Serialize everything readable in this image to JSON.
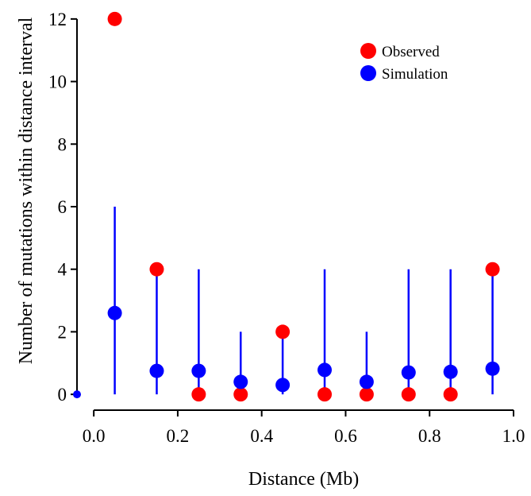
{
  "chart_data": {
    "type": "scatter",
    "title": "",
    "xlabel": "Distance (Mb)",
    "ylabel": "Number of mutations within distance interval",
    "xlim": [
      -0.04,
      1.0
    ],
    "ylim": [
      -0.2,
      12.2
    ],
    "xticks": [
      "0.0",
      "0.2",
      "0.4",
      "0.6",
      "0.8",
      "1.0"
    ],
    "xtick_values": [
      0.0,
      0.2,
      0.4,
      0.6,
      0.8,
      1.0
    ],
    "yticks": [
      "0",
      "2",
      "4",
      "6",
      "8",
      "10",
      "12"
    ],
    "ytick_values": [
      0,
      2,
      4,
      6,
      8,
      10,
      12
    ],
    "grid": false,
    "legend_position": "top-right",
    "series": [
      {
        "name": "Observed",
        "color": "#ff0000",
        "x": [
          0.05,
          0.15,
          0.25,
          0.35,
          0.45,
          0.55,
          0.65,
          0.75,
          0.85,
          0.95
        ],
        "y": [
          12,
          4,
          0,
          0,
          2,
          0,
          0,
          0,
          0,
          4
        ]
      },
      {
        "name": "Simulation",
        "color": "#0000ff",
        "x": [
          0.05,
          0.15,
          0.25,
          0.35,
          0.45,
          0.55,
          0.65,
          0.75,
          0.85,
          0.95
        ],
        "y": [
          2.6,
          0.75,
          0.75,
          0.4,
          0.3,
          0.78,
          0.4,
          0.7,
          0.72,
          0.82
        ],
        "ymin": [
          0,
          0,
          0,
          0,
          0,
          0,
          0,
          0,
          0,
          0
        ],
        "ymax": [
          6,
          4,
          4,
          2,
          2,
          4,
          2,
          4,
          4,
          4
        ]
      }
    ]
  }
}
